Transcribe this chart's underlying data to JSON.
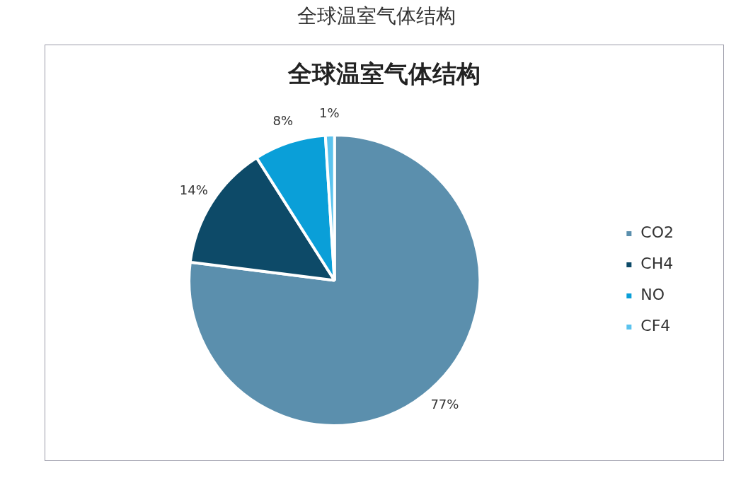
{
  "chart_data": {
    "type": "pie",
    "title": "全球温室气体结构",
    "subtitle": "全球温室气体结构",
    "categories": [
      "CO2",
      "CH4",
      "NO",
      "CF4"
    ],
    "values": [
      77,
      14,
      8,
      1
    ],
    "colors": [
      "#5b8fad",
      "#0d4a68",
      "#0a9fd8",
      "#5bc3ee"
    ],
    "value_labels": [
      "77%",
      "14%",
      "8%",
      "1%"
    ],
    "legend": "right"
  }
}
